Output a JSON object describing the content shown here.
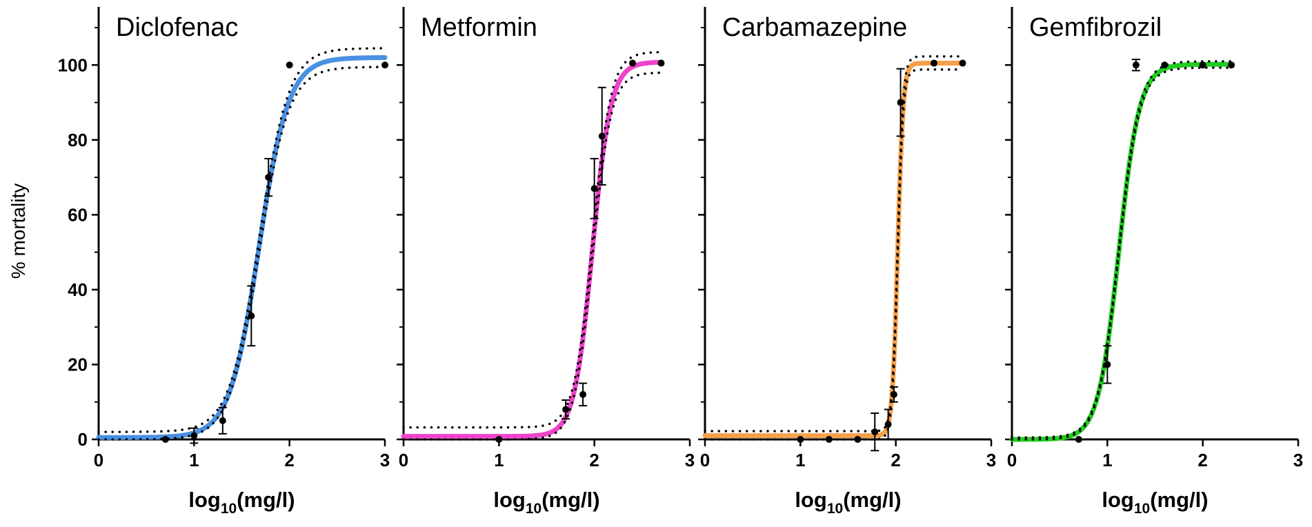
{
  "chart_data": {
    "type": "line",
    "ylabel": "% mortality",
    "ylim": [
      0,
      110
    ],
    "yticks": [
      0,
      20,
      40,
      60,
      80,
      100
    ],
    "xlim": [
      0,
      3
    ],
    "xticks": [
      0,
      1,
      2,
      3
    ],
    "xlabel_main": "log",
    "xlabel_sub": "10",
    "xlabel_tail": "(mg/l)",
    "panels": [
      {
        "title": "Diclofenac",
        "color": "#4a90e2",
        "fit": {
          "bottom": 0.5,
          "top": 102,
          "log_ec50": 1.68,
          "hill": 2.8
        },
        "ci": {
          "lower_bottom": 0.0,
          "upper_bottom": 2.0,
          "lower_top": 99.5,
          "upper_top": 104.5
        },
        "points": [
          {
            "x": 0.7,
            "y": 0,
            "err": 0
          },
          {
            "x": 1.0,
            "y": 1,
            "err": 2
          },
          {
            "x": 1.3,
            "y": 5,
            "err": 3.5
          },
          {
            "x": 1.6,
            "y": 33,
            "err": 8
          },
          {
            "x": 1.78,
            "y": 70,
            "err": 5
          },
          {
            "x": 2.0,
            "y": 100,
            "err": 0
          },
          {
            "x": 3.0,
            "y": 100,
            "err": 0
          }
        ]
      },
      {
        "title": "Metformin",
        "color": "#ee44cc",
        "fit": {
          "bottom": 0.8,
          "top": 100.8,
          "log_ec50": 1.98,
          "hill": 4.5
        },
        "ci": {
          "lower_bottom": 0.0,
          "upper_bottom": 3.2,
          "lower_top": 98,
          "upper_top": 103.5
        },
        "points": [
          {
            "x": 1.0,
            "y": 0,
            "err": 0
          },
          {
            "x": 1.7,
            "y": 8,
            "err": 2.5
          },
          {
            "x": 1.88,
            "y": 12,
            "err": 3
          },
          {
            "x": 2.0,
            "y": 67,
            "err": 8
          },
          {
            "x": 2.08,
            "y": 81,
            "err": 13
          },
          {
            "x": 2.4,
            "y": 100.5,
            "err": 0
          },
          {
            "x": 2.7,
            "y": 100.5,
            "err": 0
          }
        ]
      },
      {
        "title": "Carbamazepine",
        "color": "#f5a04a",
        "fit": {
          "bottom": 1.0,
          "top": 100.5,
          "log_ec50": 2.02,
          "hill": 15
        },
        "ci": {
          "lower_bottom": 0.0,
          "upper_bottom": 2.2,
          "lower_top": 98.8,
          "upper_top": 102.3
        },
        "points": [
          {
            "x": 1.0,
            "y": 0,
            "err": 0
          },
          {
            "x": 1.3,
            "y": 0,
            "err": 0
          },
          {
            "x": 1.6,
            "y": 0,
            "err": 0
          },
          {
            "x": 1.78,
            "y": 2,
            "err": 5
          },
          {
            "x": 1.92,
            "y": 4,
            "err": 4
          },
          {
            "x": 1.98,
            "y": 12,
            "err": 2
          },
          {
            "x": 2.05,
            "y": 90,
            "err": 9
          },
          {
            "x": 2.4,
            "y": 100.5,
            "err": 0
          },
          {
            "x": 2.7,
            "y": 100.5,
            "err": 0
          }
        ]
      },
      {
        "title": "Gemfibrozil",
        "color": "#22cc22",
        "fit": {
          "bottom": 0.0,
          "top": 100.2,
          "log_ec50": 1.12,
          "hill": 4.0
        },
        "ci": {
          "lower_bottom": 0.0,
          "upper_bottom": 0.5,
          "lower_top": 99.3,
          "upper_top": 101.0
        },
        "points": [
          {
            "x": 0.7,
            "y": 0,
            "err": 0
          },
          {
            "x": 1.0,
            "y": 20,
            "err": 5
          },
          {
            "x": 1.3,
            "y": 100,
            "err": 1.5
          },
          {
            "x": 1.6,
            "y": 100,
            "err": 0
          },
          {
            "x": 2.0,
            "y": 100,
            "err": 0
          },
          {
            "x": 2.3,
            "y": 100,
            "err": 0
          }
        ]
      }
    ]
  }
}
